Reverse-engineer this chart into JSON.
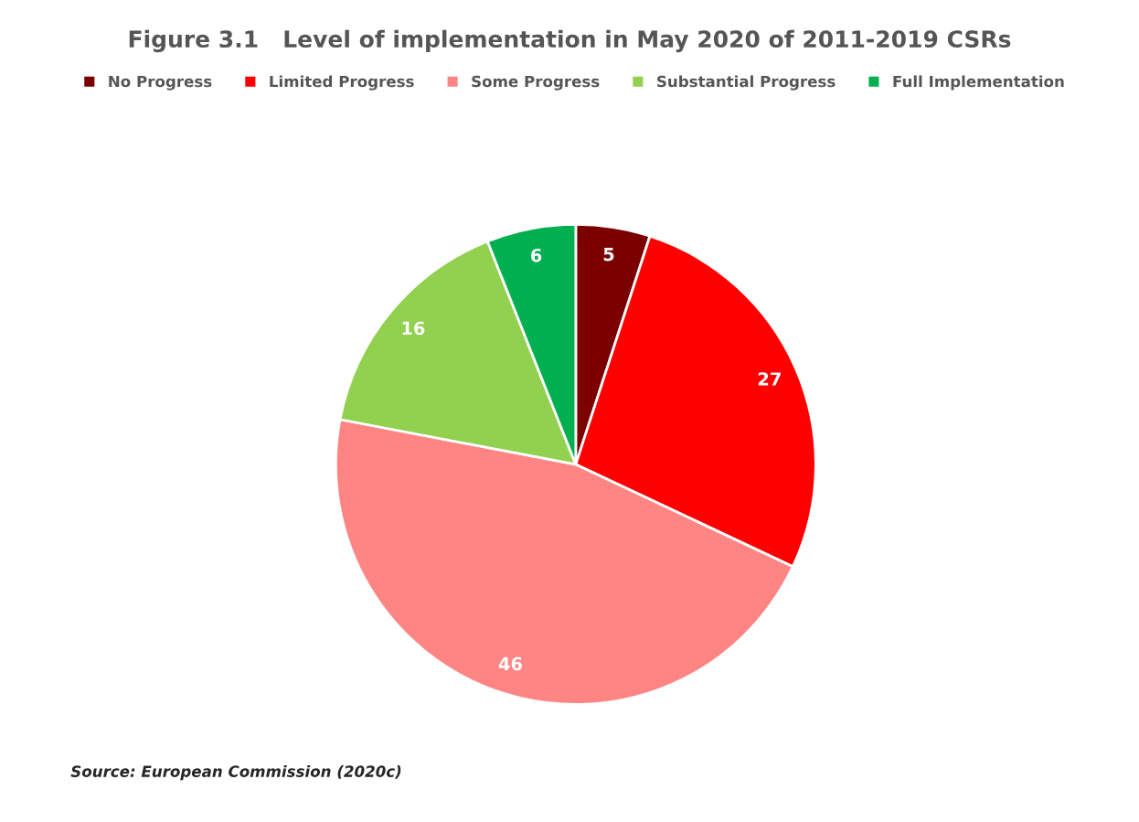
{
  "chart_data": {
    "type": "pie",
    "title": "Figure 3.1   Level of implementation in May 2020 of 2011-2019 CSRs",
    "categories": [
      "No Progress",
      "Limited Progress",
      "Some Progress",
      "Substantial Progress",
      "Full Implementation"
    ],
    "values": [
      5,
      27,
      46,
      16,
      6
    ],
    "colors": [
      "#7b0000",
      "#ff0000",
      "#ff8585",
      "#92d050",
      "#00b050"
    ],
    "data_labels": true,
    "legend": "top",
    "annotations": [
      "Source: European Commission (2020c)"
    ]
  }
}
